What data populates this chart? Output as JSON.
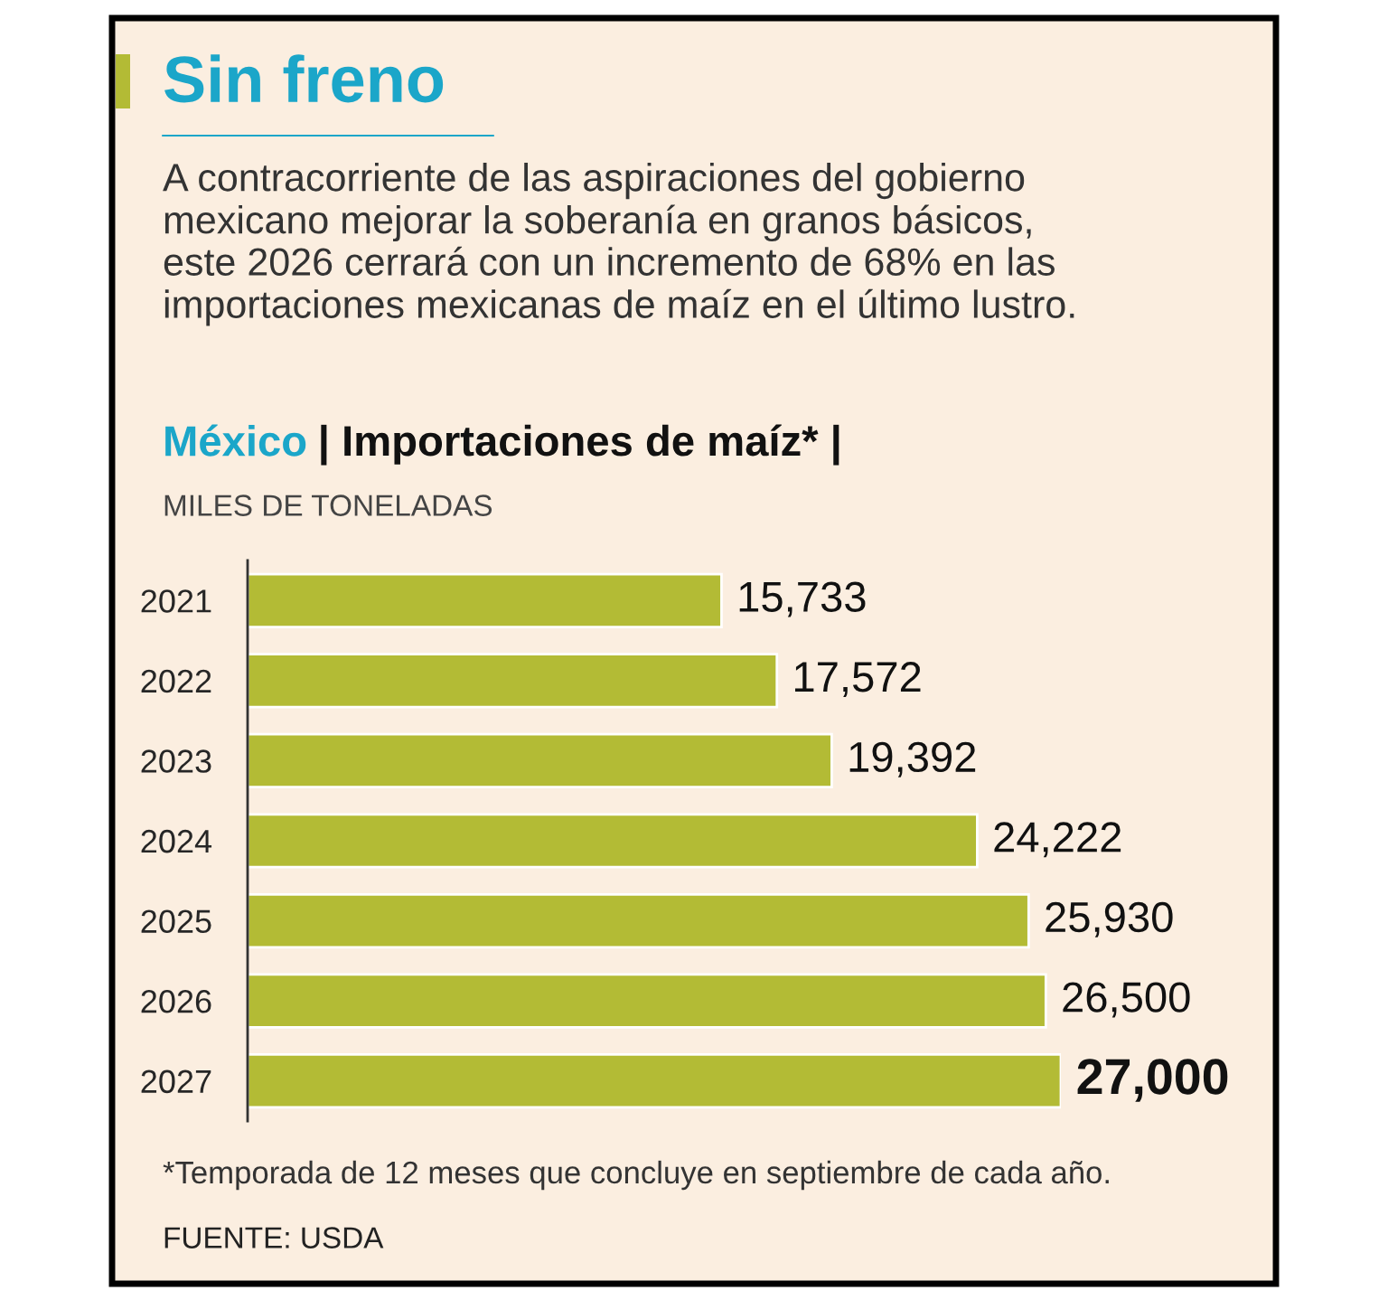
{
  "chart_data": {
    "type": "bar",
    "orientation": "horizontal",
    "title": "Sin freno",
    "subtitle": "A contracorriente de las aspiraciones del gobierno\nmexicano mejorar la soberanía en granos básicos,\neste 2026 cerrará con un incremento de 68% en las\nimportaciones mexicanas de maíz en el último lustro.",
    "annotations": [
      "México",
      "| Importaciones de maíz* |",
      "MILES DE TONELADAS",
      "*Temporada de 12 meses que concluye en septiembre de cada año.",
      "FUENTE: USDA"
    ],
    "categories": [
      "2021",
      "2022",
      "2023",
      "2024",
      "2025",
      "2026",
      "2027"
    ],
    "values": [
      15733,
      17572,
      19392,
      24222,
      25930,
      26500,
      27000
    ],
    "value_labels": [
      "15,733",
      "17,572",
      "19,392",
      "24,222",
      "25,930",
      "26,500",
      "27,000"
    ],
    "color": "#b3bb35",
    "tick_labels": "y",
    "grid": false,
    "legend": false
  }
}
